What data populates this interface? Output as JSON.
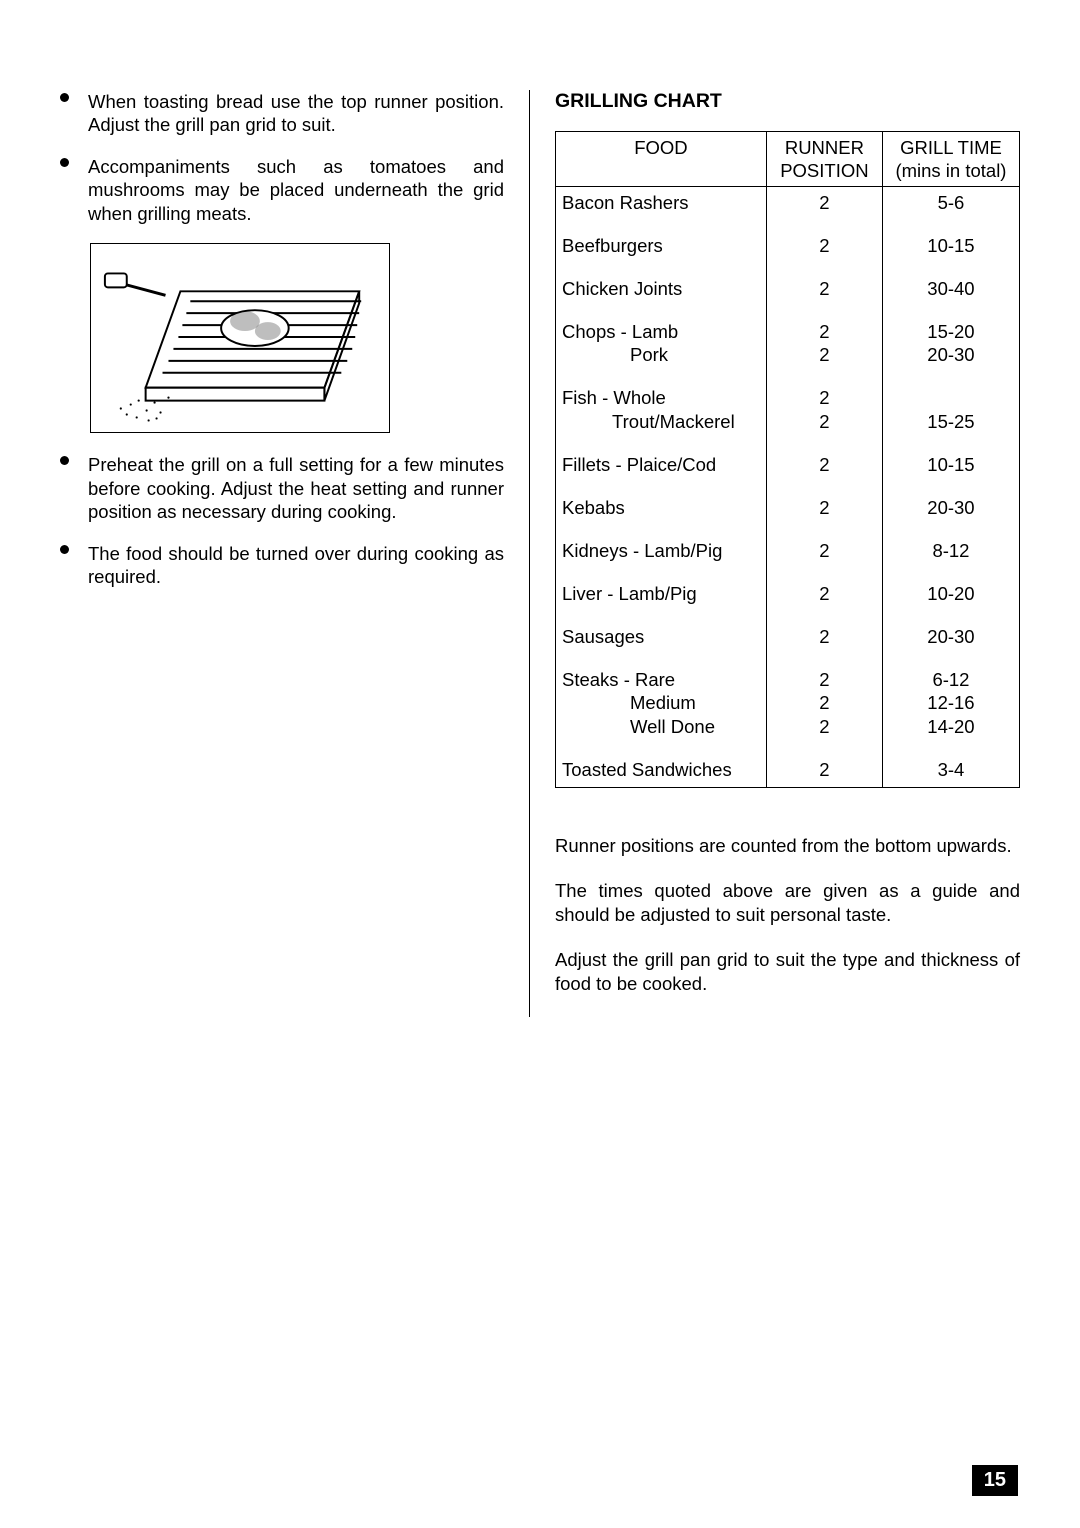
{
  "left": {
    "bullets_top": [
      "When toasting bread use the top runner position. Adjust the grill pan grid to suit.",
      "Accompaniments such as tomatoes and mushrooms may be placed underneath the grid when grilling meats."
    ],
    "bullets_bottom": [
      "Preheat the grill on a full setting for a few minutes before cooking. Adjust the heat setting and runner position as necessary during cooking.",
      "The food should be turned over during cooking as required."
    ]
  },
  "chart": {
    "title": "GRILLING CHART",
    "headers": {
      "food": "FOOD",
      "runner_l1": "RUNNER",
      "runner_l2": "POSITION",
      "time_l1": "GRILL TIME",
      "time_l2": "(mins in total)"
    },
    "rows": [
      {
        "food": "Bacon  Rashers",
        "runner": "2",
        "time": "5-6"
      },
      {
        "food": "Beefburgers",
        "runner": "2",
        "time": "10-15"
      },
      {
        "food": "Chicken Joints",
        "runner": "2",
        "time": "30-40"
      },
      {
        "food": "Chops - Lamb",
        "runner": "2",
        "time": "15-20",
        "sub": [
          {
            "food": "Pork",
            "runner": "2",
            "time": "20-30",
            "indent": "indent2"
          }
        ]
      },
      {
        "food": "Fish -  Whole",
        "runner": "2",
        "time": "",
        "sub": [
          {
            "food": "Trout/Mackerel",
            "runner": "2",
            "time": "15-25",
            "indent": "indent1"
          }
        ]
      },
      {
        "food": "Fillets - Plaice/Cod",
        "runner": "2",
        "time": "10-15"
      },
      {
        "food": "Kebabs",
        "runner": "2",
        "time": "20-30"
      },
      {
        "food": "Kidneys - Lamb/Pig",
        "runner": "2",
        "time": "8-12"
      },
      {
        "food": "Liver - Lamb/Pig",
        "runner": "2",
        "time": "10-20"
      },
      {
        "food": "Sausages",
        "runner": "2",
        "time": "20-30"
      },
      {
        "food": "Steaks - Rare",
        "runner": "2",
        "time": "6-12",
        "sub": [
          {
            "food": "Medium",
            "runner": "2",
            "time": "12-16",
            "indent": "indent2"
          },
          {
            "food": "Well Done",
            "runner": "2",
            "time": "14-20",
            "indent": "indent2"
          }
        ]
      },
      {
        "food": "Toasted Sandwiches",
        "runner": "2",
        "time": "3-4"
      }
    ]
  },
  "notes": [
    "Runner positions are counted from the bottom upwards.",
    "The times quoted above are given as a guide and should be adjusted to suit personal taste.",
    "Adjust the grill pan grid to suit the type and thickness of food to be cooked."
  ],
  "page_number": "15"
}
